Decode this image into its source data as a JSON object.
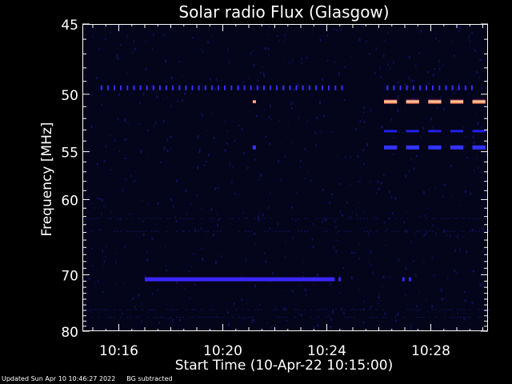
{
  "chart_data": {
    "type": "heatmap",
    "title": "Solar radio Flux (Glasgow)",
    "xlabel": "Start Time (10-Apr-22 10:15:00)",
    "ylabel": "Frequency [MHz]",
    "xlim_minutes_after_10_15": [
      -0.4,
      15.2
    ],
    "ylim_mhz": [
      45,
      80
    ],
    "y_ticks": [
      45,
      50,
      55,
      60,
      70,
      80
    ],
    "x_ticks": [
      {
        "label": "10:16",
        "minute": 1
      },
      {
        "label": "10:20",
        "minute": 5
      },
      {
        "label": "10:24",
        "minute": 9
      },
      {
        "label": "10:28",
        "minute": 13
      }
    ],
    "background_color": "#04041a",
    "emission_features": [
      {
        "name": "Periodic spikes at ~49.5 MHz",
        "freq_mhz": 49.5,
        "t_start_min": 0.3,
        "t_end_min": 14.6,
        "intensity": "medium",
        "color": "#3a2cff"
      },
      {
        "name": "Bright periodic bursts at ~50.6 MHz",
        "freq_mhz": 50.6,
        "t_start_min": 11.2,
        "t_end_min": 15.2,
        "intensity": "high",
        "color": "#ffcc66"
      },
      {
        "name": "Periodic bursts at ~53.1 MHz",
        "freq_mhz": 53.1,
        "t_start_min": 11.2,
        "t_end_min": 15.2,
        "intensity": "medium",
        "color": "#2020ee"
      },
      {
        "name": "Periodic bursts at ~54.6 MHz",
        "freq_mhz": 54.6,
        "t_start_min": 11.2,
        "t_end_min": 15.2,
        "intensity": "high",
        "color": "#3333ff"
      },
      {
        "name": "Band at ~70.7 MHz",
        "freq_mhz": 70.7,
        "t_start_min": 2.0,
        "t_end_min": 9.3,
        "intensity": "high",
        "color": "#3a26ff"
      }
    ]
  },
  "footer": {
    "updated": "Updated Sun Apr 10 10:46:27 2022",
    "bg_note": "BG subtracted"
  }
}
